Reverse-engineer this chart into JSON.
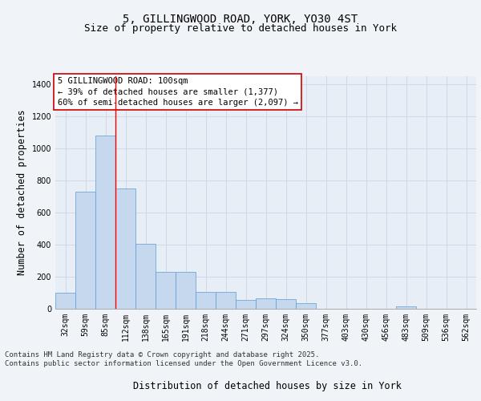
{
  "title_line1": "5, GILLINGWOOD ROAD, YORK, YO30 4ST",
  "title_line2": "Size of property relative to detached houses in York",
  "xlabel": "Distribution of detached houses by size in York",
  "ylabel": "Number of detached properties",
  "categories": [
    "32sqm",
    "59sqm",
    "85sqm",
    "112sqm",
    "138sqm",
    "165sqm",
    "191sqm",
    "218sqm",
    "244sqm",
    "271sqm",
    "297sqm",
    "324sqm",
    "350sqm",
    "377sqm",
    "403sqm",
    "430sqm",
    "456sqm",
    "483sqm",
    "509sqm",
    "536sqm",
    "562sqm"
  ],
  "values": [
    100,
    730,
    1080,
    750,
    405,
    230,
    230,
    105,
    105,
    55,
    65,
    60,
    35,
    0,
    0,
    0,
    0,
    15,
    0,
    0,
    0
  ],
  "bar_color": "#c5d8ed",
  "bar_edge_color": "#5b9bd5",
  "grid_color": "#d0d8e8",
  "background_color": "#e8eef5",
  "fig_background_color": "#f0f4f8",
  "red_line_x": 2.5,
  "annotation_text": "5 GILLINGWOOD ROAD: 100sqm\n← 39% of detached houses are smaller (1,377)\n60% of semi-detached houses are larger (2,097) →",
  "annotation_box_color": "#ffffff",
  "annotation_box_edge_color": "#cc0000",
  "footer_line1": "Contains HM Land Registry data © Crown copyright and database right 2025.",
  "footer_line2": "Contains public sector information licensed under the Open Government Licence v3.0.",
  "ylim": [
    0,
    1450
  ],
  "yticks": [
    0,
    200,
    400,
    600,
    800,
    1000,
    1200,
    1400
  ],
  "title_fontsize": 10,
  "subtitle_fontsize": 9,
  "tick_fontsize": 7,
  "label_fontsize": 8.5,
  "annotation_fontsize": 7.5,
  "footer_fontsize": 6.5
}
